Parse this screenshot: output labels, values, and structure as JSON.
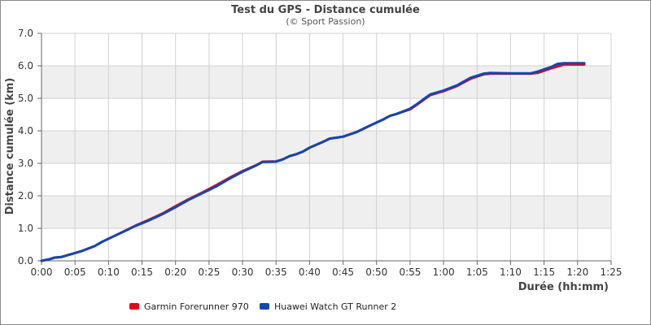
{
  "chart_data": {
    "type": "line",
    "title": "Test du GPS - Distance cumulée",
    "subtitle": "(© Sport Passion)",
    "xlabel": "Durée (hh:mm)",
    "ylabel": "Distance cumulée (km)",
    "xlim": [
      0,
      85
    ],
    "ylim": [
      0,
      7
    ],
    "x_ticks": [
      0,
      5,
      10,
      15,
      20,
      25,
      30,
      35,
      40,
      45,
      50,
      55,
      60,
      65,
      70,
      75,
      80,
      85
    ],
    "x_tick_labels": [
      "0:00",
      "0:05",
      "0:10",
      "0:15",
      "0:20",
      "0:25",
      "0:30",
      "0:35",
      "0:40",
      "0:45",
      "0:50",
      "0:55",
      "1:00",
      "1:05",
      "1:10",
      "1:15",
      "1:20",
      "1:25"
    ],
    "y_ticks": [
      0,
      1,
      2,
      3,
      4,
      5,
      6,
      7
    ],
    "y_tick_labels": [
      "0.0",
      "1.0",
      "2.0",
      "3.0",
      "4.0",
      "5.0",
      "6.0",
      "7.0"
    ],
    "grid": true,
    "legend_position": "bottom-left",
    "series": [
      {
        "name": "Garmin Forerunner 970",
        "color": "#e8001c",
        "points": [
          [
            0,
            0.0
          ],
          [
            1,
            0.04
          ],
          [
            2,
            0.1
          ],
          [
            3,
            0.12
          ],
          [
            4,
            0.18
          ],
          [
            5,
            0.24
          ],
          [
            6,
            0.3
          ],
          [
            7,
            0.38
          ],
          [
            8,
            0.46
          ],
          [
            9,
            0.58
          ],
          [
            10,
            0.68
          ],
          [
            12,
            0.88
          ],
          [
            14,
            1.08
          ],
          [
            16,
            1.26
          ],
          [
            18,
            1.45
          ],
          [
            20,
            1.68
          ],
          [
            22,
            1.9
          ],
          [
            24,
            2.1
          ],
          [
            26,
            2.32
          ],
          [
            28,
            2.55
          ],
          [
            30,
            2.76
          ],
          [
            32,
            2.94
          ],
          [
            33,
            3.05
          ],
          [
            35,
            3.06
          ],
          [
            36,
            3.12
          ],
          [
            37,
            3.22
          ],
          [
            38,
            3.28
          ],
          [
            39,
            3.36
          ],
          [
            40,
            3.48
          ],
          [
            42,
            3.66
          ],
          [
            43,
            3.76
          ],
          [
            45,
            3.82
          ],
          [
            47,
            3.96
          ],
          [
            49,
            4.16
          ],
          [
            51,
            4.35
          ],
          [
            52,
            4.46
          ],
          [
            53,
            4.52
          ],
          [
            55,
            4.66
          ],
          [
            56,
            4.8
          ],
          [
            57,
            4.95
          ],
          [
            58,
            5.1
          ],
          [
            60,
            5.22
          ],
          [
            62,
            5.38
          ],
          [
            64,
            5.6
          ],
          [
            66,
            5.74
          ],
          [
            67,
            5.76
          ],
          [
            70,
            5.76
          ],
          [
            73,
            5.76
          ],
          [
            74,
            5.78
          ],
          [
            76,
            5.92
          ],
          [
            78,
            6.04
          ],
          [
            81,
            6.04
          ]
        ]
      },
      {
        "name": "Huawei Watch GT Runner 2",
        "color": "#1248b0",
        "points": [
          [
            0,
            0.0
          ],
          [
            1,
            0.04
          ],
          [
            2,
            0.1
          ],
          [
            3,
            0.12
          ],
          [
            4,
            0.18
          ],
          [
            5,
            0.24
          ],
          [
            6,
            0.3
          ],
          [
            7,
            0.38
          ],
          [
            8,
            0.46
          ],
          [
            9,
            0.58
          ],
          [
            10,
            0.68
          ],
          [
            12,
            0.87
          ],
          [
            14,
            1.07
          ],
          [
            16,
            1.24
          ],
          [
            18,
            1.43
          ],
          [
            20,
            1.65
          ],
          [
            22,
            1.88
          ],
          [
            24,
            2.08
          ],
          [
            26,
            2.28
          ],
          [
            28,
            2.52
          ],
          [
            30,
            2.74
          ],
          [
            32,
            2.93
          ],
          [
            33,
            3.04
          ],
          [
            35,
            3.05
          ],
          [
            36,
            3.12
          ],
          [
            37,
            3.22
          ],
          [
            38,
            3.28
          ],
          [
            39,
            3.36
          ],
          [
            40,
            3.48
          ],
          [
            42,
            3.66
          ],
          [
            43,
            3.76
          ],
          [
            45,
            3.82
          ],
          [
            47,
            3.96
          ],
          [
            49,
            4.16
          ],
          [
            51,
            4.35
          ],
          [
            52,
            4.46
          ],
          [
            53,
            4.52
          ],
          [
            55,
            4.68
          ],
          [
            56,
            4.82
          ],
          [
            57,
            4.97
          ],
          [
            58,
            5.12
          ],
          [
            60,
            5.24
          ],
          [
            62,
            5.4
          ],
          [
            64,
            5.63
          ],
          [
            66,
            5.76
          ],
          [
            67,
            5.78
          ],
          [
            70,
            5.77
          ],
          [
            73,
            5.77
          ],
          [
            74,
            5.82
          ],
          [
            76,
            5.96
          ],
          [
            77,
            6.06
          ],
          [
            78,
            6.08
          ],
          [
            81,
            6.08
          ]
        ]
      }
    ]
  }
}
